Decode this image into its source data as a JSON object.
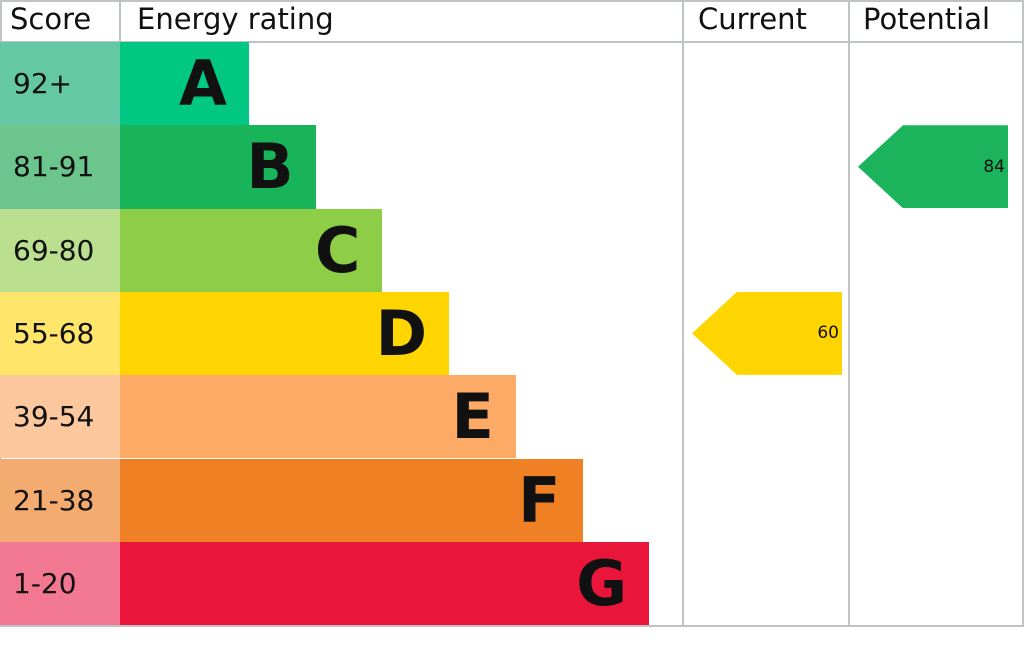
{
  "chart_data": {
    "type": "bar",
    "headers": {
      "score": "Score",
      "rating": "Energy rating",
      "current": "Current",
      "potential": "Potential"
    },
    "bands": [
      {
        "letter": "A",
        "range": "92+",
        "color": "#00c781",
        "score_color": "#64c8a4"
      },
      {
        "letter": "B",
        "range": "81-91",
        "color": "#19b459",
        "score_color": "#6cc58d"
      },
      {
        "letter": "C",
        "range": "69-80",
        "color": "#8dce46",
        "score_color": "#b9df8f"
      },
      {
        "letter": "D",
        "range": "55-68",
        "color": "#ffd500",
        "score_color": "#ffe66b"
      },
      {
        "letter": "E",
        "range": "39-54",
        "color": "#fcaa65",
        "score_color": "#fdc89d"
      },
      {
        "letter": "F",
        "range": "21-38",
        "color": "#ef8023",
        "score_color": "#f4ab6f"
      },
      {
        "letter": "G",
        "range": "1-20",
        "color": "#e9153b",
        "score_color": "#f27892"
      }
    ],
    "current": {
      "value": "60",
      "band": "D",
      "color": "#ffd500"
    },
    "potential": {
      "value": "84",
      "band": "B",
      "color": "#1bb35b"
    }
  }
}
